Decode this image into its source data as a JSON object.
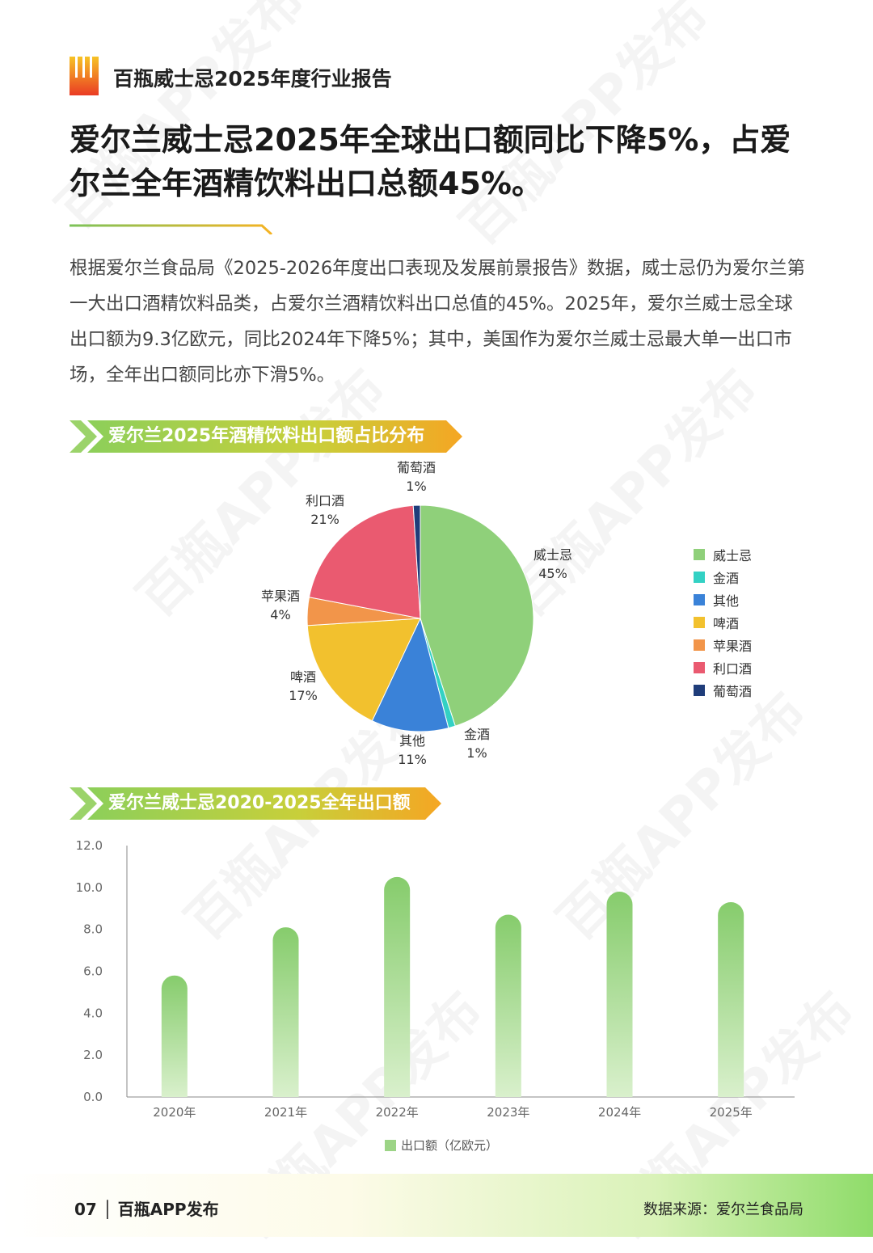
{
  "header": {
    "report_title": "百瓶威士忌2025年度行业报告"
  },
  "headline": "爱尔兰威士忌2025年全球出口额同比下降5%，占爱尔兰全年酒精饮料出口总额45%。",
  "body_text": "根据爱尔兰食品局《2025-2026年度出口表现及发展前景报告》数据，威士忌仍为爱尔兰第一大出口酒精饮料品类，占爱尔兰酒精饮料出口总值的45%。2025年，爱尔兰威士忌全球出口额为9.3亿欧元，同比2024年下降5%；其中，美国作为爱尔兰威士忌最大单一出口市场，全年出口额同比亦下滑5%。",
  "section1": {
    "title": "爱尔兰2025年酒精饮料出口额占比分布"
  },
  "section2": {
    "title": "爱尔兰威士忌2020-2025全年出口额"
  },
  "watermark": "百瓶APP发布",
  "footer": {
    "page_label": "07 │ 百瓶APP发布",
    "source": "数据来源：爱尔兰食品局"
  },
  "colors": {
    "accent_green": "#7cc35a",
    "accent_orange": "#f5a623",
    "bar_green": "#8fcf78"
  },
  "chart_data": [
    {
      "type": "pie",
      "title": "",
      "slices": [
        {
          "label": "威士忌",
          "value": 45,
          "pct_label": "45%",
          "color": "#8fd07a"
        },
        {
          "label": "金酒",
          "value": 1,
          "pct_label": "1%",
          "color": "#33d1c4"
        },
        {
          "label": "其他",
          "value": 11,
          "pct_label": "11%",
          "color": "#3a82d8"
        },
        {
          "label": "啤酒",
          "value": 17,
          "pct_label": "17%",
          "color": "#f2c12e"
        },
        {
          "label": "苹果酒",
          "value": 4,
          "pct_label": "4%",
          "color": "#f2954a"
        },
        {
          "label": "利口酒",
          "value": 21,
          "pct_label": "21%",
          "color": "#ea5a70"
        },
        {
          "label": "葡萄酒",
          "value": 1,
          "pct_label": "1%",
          "color": "#1f3d7a"
        }
      ],
      "legend_position": "right"
    },
    {
      "type": "bar",
      "categories": [
        "2020年",
        "2021年",
        "2022年",
        "2023年",
        "2024年",
        "2025年"
      ],
      "series": [
        {
          "name": "出口额（亿欧元）",
          "values": [
            5.8,
            8.1,
            10.5,
            8.7,
            9.8,
            9.3
          ]
        }
      ],
      "ylim": [
        0,
        12
      ],
      "yticks": [
        "0.0",
        "2.0",
        "4.0",
        "6.0",
        "8.0",
        "10.0",
        "12.0"
      ],
      "xlabel": "",
      "ylabel": "",
      "grid": false,
      "legend_position": "bottom"
    }
  ]
}
